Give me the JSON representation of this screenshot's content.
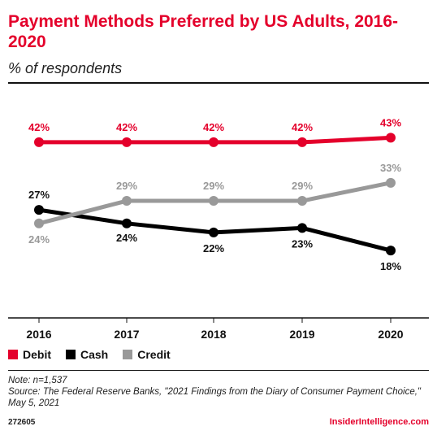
{
  "header": {
    "title": "Payment Methods Preferred by US Adults, 2016-2020",
    "subtitle": "% of respondents"
  },
  "chart_data": {
    "type": "line",
    "title": "Payment Methods Preferred by US Adults, 2016-2020",
    "subtitle": "% of respondents",
    "xlabel": "",
    "ylabel": "",
    "grid": false,
    "legend_position": "bottom-left",
    "x": [
      "2016",
      "2017",
      "2018",
      "2019",
      "2020"
    ],
    "series": [
      {
        "name": "Debit",
        "color": "#e4002b",
        "values": [
          42,
          42,
          42,
          42,
          43
        ],
        "labels": [
          "42%",
          "42%",
          "42%",
          "42%",
          "43%"
        ]
      },
      {
        "name": "Cash",
        "color": "#000000",
        "values": [
          27,
          24,
          22,
          23,
          18
        ],
        "labels": [
          "27%",
          "24%",
          "22%",
          "23%",
          "18%"
        ]
      },
      {
        "name": "Credit",
        "color": "#999999",
        "values": [
          24,
          29,
          29,
          29,
          33
        ],
        "labels": [
          "24%",
          "29%",
          "29%",
          "29%",
          "33%"
        ]
      }
    ]
  },
  "footer": {
    "note": "Note: n=1,537",
    "source": "Source: The Federal Reserve Banks, \"2021 Findings from the Diary of Consumer Payment Choice,\" May 5, 2021",
    "chart_id": "272605",
    "brand": "InsiderIntelligence.com"
  }
}
